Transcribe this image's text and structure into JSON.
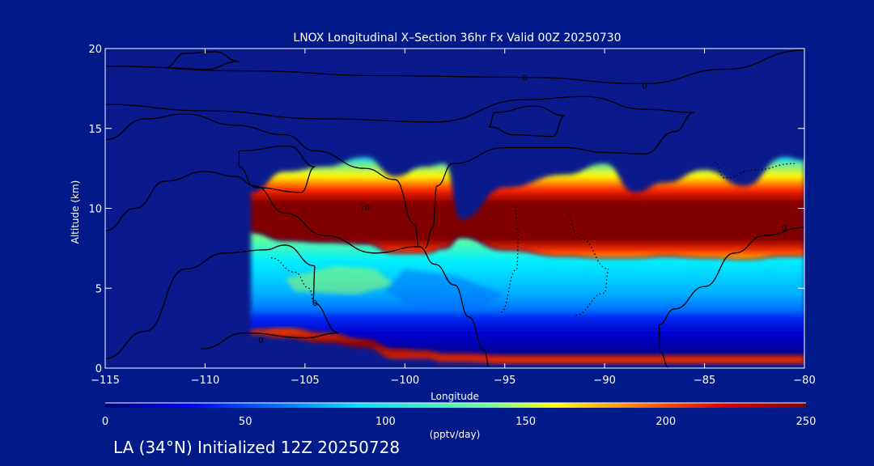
{
  "chart_data": {
    "type": "heatmap",
    "title": "LNOX Longitudinal X–Section 36hr  Fx Valid 00Z 20250730",
    "xlabel": "Longitude",
    "ylabel": "Altitude (km)",
    "xlim": [
      -115,
      -80
    ],
    "ylim": [
      0,
      20
    ],
    "x_ticks": [
      -115,
      -110,
      -105,
      -100,
      -95,
      -90,
      -85,
      -80
    ],
    "x_tick_labels": [
      "−115",
      "−110",
      "−105",
      "−100",
      "−95",
      "−90",
      "−85",
      "−80"
    ],
    "y_ticks": [
      0,
      5,
      10,
      15,
      20
    ],
    "y_tick_labels": [
      "0",
      "5",
      "10",
      "15",
      "20"
    ],
    "colorbar": {
      "min": 0,
      "max": 250,
      "label": "(pptv/day)",
      "ticks": [
        0,
        50,
        100,
        150,
        200,
        250
      ],
      "tick_labels": [
        "0",
        "50",
        "100",
        "150",
        "200",
        "250"
      ]
    },
    "field_profile": {
      "longitudes": [
        -107.7,
        -106,
        -104,
        -102,
        -100.5,
        -99,
        -98,
        -97.2,
        -95,
        -92,
        -90,
        -88.5,
        -87,
        -85,
        -83,
        -81,
        -80
      ],
      "upper_band_bottom_km": [
        8.5,
        8.0,
        7.9,
        7.8,
        7.2,
        7.2,
        7.5,
        8.2,
        7.4,
        7.0,
        6.9,
        6.9,
        7.0,
        6.9,
        6.8,
        7.0,
        7.0
      ],
      "upper_band_top_km": [
        11.0,
        12.3,
        12.6,
        13.2,
        12.0,
        12.6,
        12.8,
        9.3,
        11.3,
        12.1,
        12.8,
        11.0,
        11.6,
        12.4,
        11.4,
        13.2,
        13.0
      ],
      "surface_band_bottom_km": [
        2.1,
        1.9,
        1.6,
        1.3,
        0.6,
        0.6,
        0.4,
        0.4,
        0.3,
        0.3,
        0.3,
        0.3,
        0.3,
        0.3,
        0.3,
        0.3,
        0.3
      ],
      "surface_band_top_km": [
        2.4,
        2.5,
        2.2,
        1.8,
        1.2,
        1.1,
        0.9,
        0.9,
        0.8,
        0.8,
        0.8,
        0.8,
        0.8,
        0.8,
        0.8,
        0.8,
        0.8
      ],
      "mid_band_value_pptv": 90,
      "low_band_value_pptv": 30
    },
    "contour_labels": [
      {
        "text": "0",
        "x": -94,
        "y": 18.2
      },
      {
        "text": "0",
        "x": -88,
        "y": 17.7
      },
      {
        "text": "10",
        "x": -102,
        "y": 10.1
      },
      {
        "text": "0",
        "x": -81,
        "y": 8.8
      },
      {
        "text": "0",
        "x": -104.5,
        "y": 4.1
      },
      {
        "text": "0",
        "x": -107.2,
        "y": 1.8
      }
    ]
  },
  "caption": "LA (34°N) Initialized 12Z 20250728",
  "colors": {
    "background": "#001a8a",
    "plot_bg": "#0a1a8c",
    "axes": "#ffffff",
    "contour": "#000000"
  }
}
